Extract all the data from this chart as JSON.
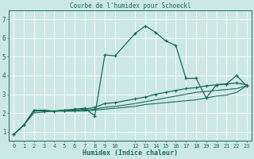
{
  "title": "Courbe de l'humidex pour Schoeckl",
  "xlabel": "Humidex (Indice chaleur)",
  "bg_color": "#cce8e4",
  "line_color": "#1a6b5a",
  "grid_color": "#ffffff",
  "xlim": [
    -0.5,
    23.5
  ],
  "ylim": [
    0.5,
    7.5
  ],
  "xticks": [
    0,
    1,
    2,
    3,
    4,
    5,
    6,
    7,
    8,
    9,
    10,
    12,
    13,
    14,
    15,
    16,
    17,
    18,
    19,
    20,
    21,
    22,
    23
  ],
  "yticks": [
    1,
    2,
    3,
    4,
    5,
    6,
    7
  ],
  "series1": [
    [
      0,
      0.85
    ],
    [
      1,
      1.35
    ],
    [
      2,
      2.15
    ],
    [
      3,
      2.15
    ],
    [
      4,
      2.1
    ],
    [
      5,
      2.15
    ],
    [
      6,
      2.2
    ],
    [
      7,
      2.25
    ],
    [
      8,
      1.85
    ],
    [
      9,
      5.1
    ],
    [
      10,
      5.05
    ],
    [
      12,
      6.25
    ],
    [
      13,
      6.65
    ],
    [
      14,
      6.3
    ],
    [
      15,
      5.85
    ],
    [
      16,
      5.6
    ],
    [
      17,
      3.85
    ],
    [
      18,
      3.85
    ],
    [
      19,
      2.8
    ],
    [
      20,
      3.5
    ],
    [
      21,
      3.55
    ],
    [
      22,
      4.0
    ],
    [
      23,
      3.45
    ]
  ],
  "series2": [
    [
      0,
      0.85
    ],
    [
      1,
      1.35
    ],
    [
      2,
      2.15
    ],
    [
      3,
      2.1
    ],
    [
      4,
      2.1
    ],
    [
      5,
      2.15
    ],
    [
      6,
      2.15
    ],
    [
      7,
      2.2
    ],
    [
      8,
      2.3
    ],
    [
      9,
      2.5
    ],
    [
      10,
      2.55
    ],
    [
      12,
      2.75
    ],
    [
      13,
      2.85
    ],
    [
      14,
      3.0
    ],
    [
      15,
      3.1
    ],
    [
      16,
      3.2
    ],
    [
      17,
      3.3
    ],
    [
      18,
      3.35
    ],
    [
      19,
      3.45
    ],
    [
      20,
      3.5
    ],
    [
      21,
      3.55
    ],
    [
      22,
      3.6
    ],
    [
      23,
      3.5
    ]
  ],
  "series3": [
    [
      0,
      0.85
    ],
    [
      1,
      1.35
    ],
    [
      2,
      2.1
    ],
    [
      3,
      2.1
    ],
    [
      4,
      2.1
    ],
    [
      5,
      2.1
    ],
    [
      6,
      2.1
    ],
    [
      7,
      2.15
    ],
    [
      8,
      2.2
    ],
    [
      9,
      2.3
    ],
    [
      10,
      2.35
    ],
    [
      12,
      2.5
    ],
    [
      13,
      2.6
    ],
    [
      14,
      2.7
    ],
    [
      15,
      2.8
    ],
    [
      16,
      2.9
    ],
    [
      17,
      3.0
    ],
    [
      18,
      3.1
    ],
    [
      19,
      3.15
    ],
    [
      20,
      3.2
    ],
    [
      21,
      3.25
    ],
    [
      22,
      3.3
    ],
    [
      23,
      3.45
    ]
  ],
  "series4": [
    [
      0,
      0.85
    ],
    [
      1,
      1.35
    ],
    [
      2,
      2.0
    ],
    [
      3,
      2.05
    ],
    [
      4,
      2.1
    ],
    [
      5,
      2.1
    ],
    [
      6,
      2.1
    ],
    [
      7,
      2.1
    ],
    [
      8,
      2.15
    ],
    [
      9,
      2.2
    ],
    [
      10,
      2.25
    ],
    [
      12,
      2.35
    ],
    [
      13,
      2.45
    ],
    [
      14,
      2.5
    ],
    [
      15,
      2.55
    ],
    [
      16,
      2.6
    ],
    [
      17,
      2.65
    ],
    [
      18,
      2.7
    ],
    [
      19,
      2.8
    ],
    [
      20,
      2.9
    ],
    [
      21,
      2.95
    ],
    [
      22,
      3.1
    ],
    [
      23,
      3.45
    ]
  ]
}
